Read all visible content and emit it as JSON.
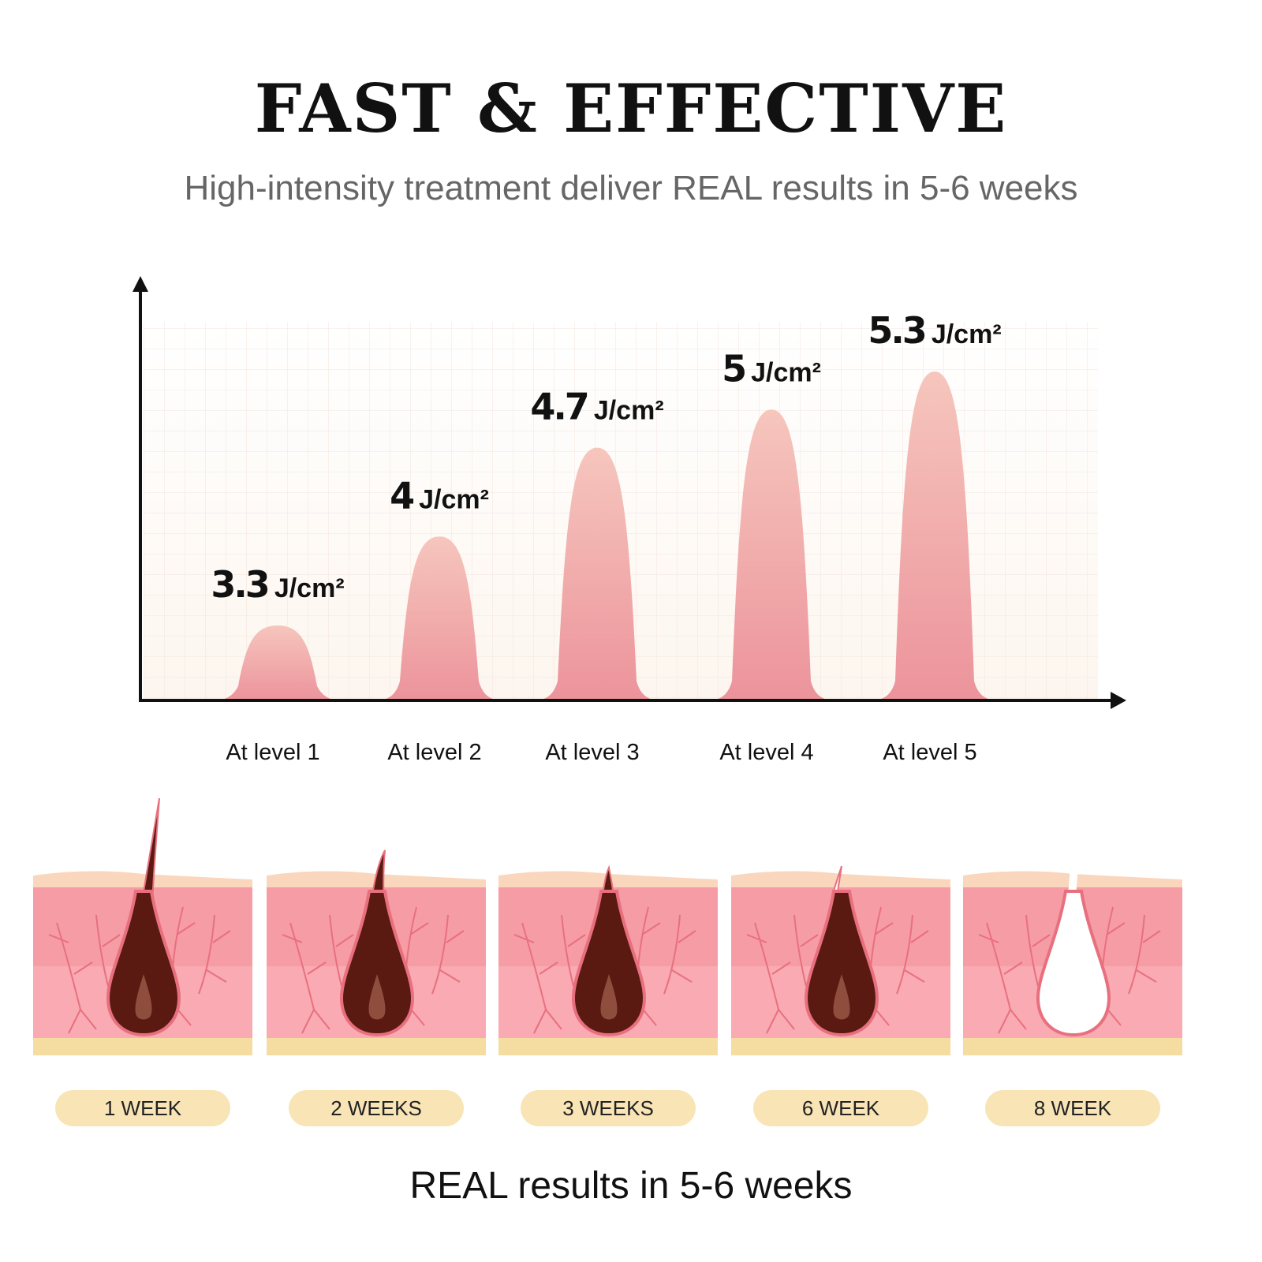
{
  "header": {
    "title": "FAST & EFFECTIVE",
    "subtitle": "High-intensity treatment deliver REAL results in 5-6 weeks"
  },
  "chart_data": {
    "type": "area",
    "title": "",
    "xlabel": "",
    "ylabel": "",
    "unit": "J/cm²",
    "categories": [
      "At level 1",
      "At level 2",
      "At level 3",
      "At level 4",
      "At level 5"
    ],
    "values": [
      3.3,
      4,
      4.7,
      5,
      5.3
    ],
    "value_labels": [
      "3.3",
      "4",
      "4.7",
      "5",
      "5.3"
    ],
    "grid": true,
    "colors": {
      "peak_top": "#f6c4bb",
      "peak_bottom": "#ec929a",
      "axis": "#111111"
    }
  },
  "timeline": {
    "stages": [
      {
        "label": "1 WEEK",
        "state": "full-hair"
      },
      {
        "label": "2 WEEKS",
        "state": "shorter-hair"
      },
      {
        "label": "3 WEEKS",
        "state": "short-hair"
      },
      {
        "label": "6 WEEK",
        "state": "weakened-hair"
      },
      {
        "label": "8 WEEK",
        "state": "empty-follicle"
      }
    ]
  },
  "footer": {
    "text": "REAL results in 5-6 weeks"
  },
  "colors": {
    "skin_top": "#fad6bd",
    "dermis": "#f69ca4",
    "dermis_light": "#fbb4bd",
    "fat": "#f5dca0",
    "hair": "#5a1a12",
    "pill_bg": "#f9e4b6"
  }
}
